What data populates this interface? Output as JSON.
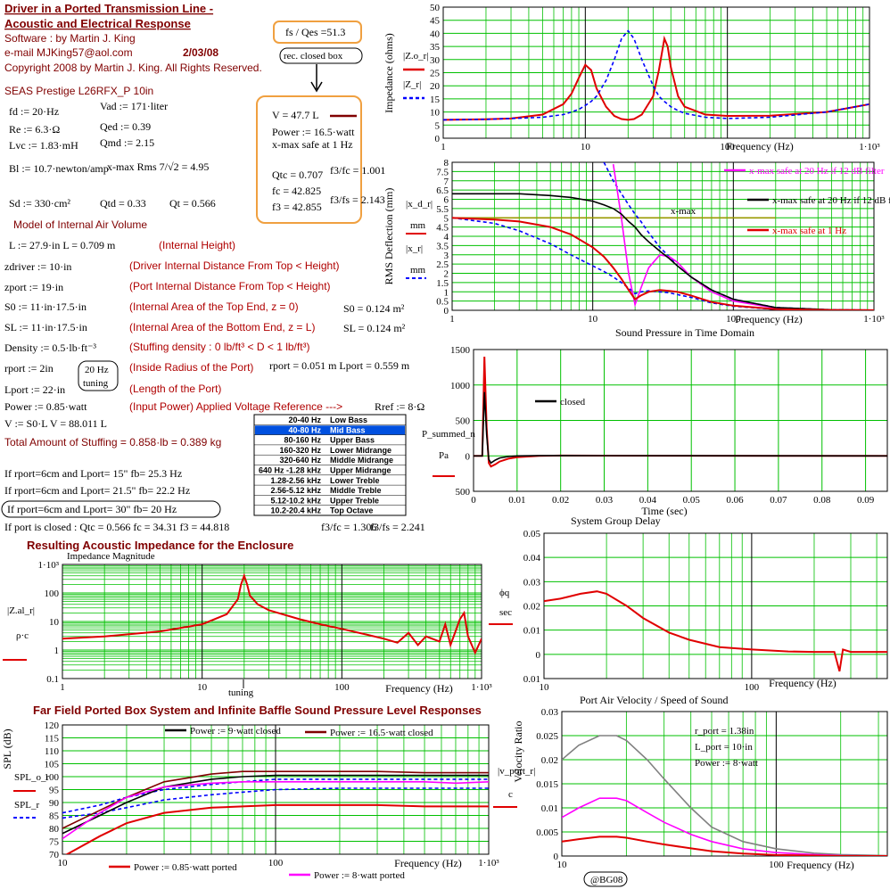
{
  "worksheet": {
    "lines": [
      "Driver in a Ported Transmission Line -",
      "Acoustic and Electrical Response",
      "Software :      by        Martin J. King",
      "e-mail  MJKing57@aol.com",
      "2/03/08",
      "Copyright 2008 by Martin J. King. All Rights Reserved.",
      "SEAS Prestige L26RFX_P 10in",
      "fd := 20·Hz",
      "Vad := 171·liter",
      "Re := 6.3·Ω",
      "Qed := 0.39",
      "Lvc := 1.83·mH",
      "Qmd := 2.15",
      "Bl := 10.7·newton/amp",
      "x-max Rms  7/√2 = 4.95",
      "Sd := 330·cm²",
      "Qtd = 0.33",
      "Qt = 0.566",
      "Model of Internal Air Volume",
      "L := 27.9·in   L = 0.709 m",
      "(Internal Height)",
      "zdriver := 10·in",
      "(Driver Internal Distance From Top < Height)",
      "zport := 19·in",
      "(Port Internal Distance From Top < Height)",
      "S0 := 11·in·17.5·in",
      "(Internal Area of the Top End, z = 0)",
      "S0 = 0.124 m²",
      "SL := 11·in·17.5·in",
      "(Internal Area of the Bottom End, z = L)",
      "SL = 0.124 m²",
      "Density := 0.5·lb·ft⁻³",
      "(Stuffing density : 0 lb/ft³ < D < 1 lb/ft³)",
      "rport := 2in",
      "20 Hz",
      "tuning",
      "(Inside Radius of the Port)",
      "rport = 0.051 m  Lport = 0.559 m",
      "Lport := 22·in",
      "(Length of the Port)",
      "Power := 0.85·watt",
      "(Input Power)   Applied Voltage Reference --->",
      "Rref := 8·Ω",
      "V := S0·L    V = 88.011 L",
      "Total Amount of Stuffing  = 0.858·lb = 0.389 kg",
      "If rport=6cm and Lport= 15\"  fb= 25.3 Hz",
      "If rport=6cm and Lport= 21.5\"  fb= 22.2 Hz",
      "If rport=6cm and Lport= 30\"  fb= 20 Hz",
      "If port is closed :  Qtc = 0.566      fc = 34.31    f3 = 44.818",
      "f3/fc = 1.306",
      "f3/fs = 2.241",
      "fs / Qes =51.3",
      "rec. closed box",
      "V = 47.7 L",
      "Power := 16.5·watt",
      "x-max safe at 1 Hz",
      "Qtc = 0.707",
      "fc = 42.825",
      "f3 = 42.855",
      "f3/fc = 1.001",
      "f3/fs = 2.143",
      "@BG08"
    ]
  },
  "table": {
    "highlight_row": 1,
    "rows": [
      [
        "20-40 Hz",
        "Low Bass"
      ],
      [
        "40-80 Hz",
        "Mid Bass"
      ],
      [
        "80-160 Hz",
        "Upper Bass"
      ],
      [
        "160-320 Hz",
        "Lower Midrange"
      ],
      [
        "320-640 Hz",
        "Middle Midrange"
      ],
      [
        "640 Hz -1.28 kHz",
        "Upper Midrange"
      ],
      [
        "1.28-2.56 kHz",
        "Lower Treble"
      ],
      [
        "2.56-5.12 kHz",
        "Middle Treble"
      ],
      [
        "5.12-10.2 kHz",
        "Upper Treble"
      ],
      [
        "10.2-20.4 kHz",
        "Top Octave"
      ]
    ]
  },
  "chart_data": [
    {
      "type": "line",
      "ylabel": "Impedance (ohms)",
      "xlabel": "Frequency (Hz)",
      "xlog": true,
      "grid": true,
      "x": [
        1,
        2,
        3,
        5,
        7,
        8,
        9,
        10,
        11,
        12,
        14,
        16,
        18,
        20,
        22,
        25,
        30,
        33,
        36,
        38,
        40,
        45,
        50,
        70,
        100,
        200,
        500,
        1000
      ],
      "xlim": [
        1,
        1000
      ],
      "xticks": [
        1,
        10,
        100,
        {
          "value": 1000,
          "label": "1·10³"
        }
      ],
      "ylim": [
        0,
        50
      ],
      "yticks": [
        0,
        5,
        10,
        15,
        20,
        25,
        30,
        35,
        40,
        45,
        50
      ],
      "series": [
        {
          "name": "|Z.o_r|",
          "color": "#e00000",
          "values": [
            7,
            7.2,
            7.5,
            9,
            13,
            17,
            23,
            28,
            26,
            19,
            12,
            8.5,
            7.3,
            7,
            7.3,
            9,
            16,
            26,
            38,
            35,
            27,
            16,
            12,
            9,
            8.5,
            8.6,
            10,
            13
          ]
        },
        {
          "name": "|Z_r|",
          "color": "#0000ff",
          "dash": true,
          "values": [
            7,
            7.2,
            7.5,
            8,
            9,
            10,
            11,
            12.5,
            14,
            16,
            22,
            30,
            38,
            41,
            38,
            30,
            20,
            16,
            14,
            13,
            12,
            10.5,
            9.5,
            8,
            7.5,
            8,
            10,
            13
          ]
        }
      ]
    },
    {
      "type": "line",
      "ylabel": "RMS Deflection (mm)",
      "xlabel": "Frequency (Hz)",
      "xlog": true,
      "grid": true,
      "ylabels": [
        "|x_d_r|",
        "mm",
        "|x_r|",
        "mm"
      ],
      "annotations": [
        "x-max"
      ],
      "x": [
        1,
        2,
        3,
        5,
        7,
        10,
        12,
        14,
        16,
        18,
        20,
        22,
        25,
        30,
        35,
        40,
        50,
        70,
        100,
        200,
        500,
        1000
      ],
      "xlim": [
        1,
        1000
      ],
      "xticks": [
        1,
        10,
        100,
        {
          "value": 1000,
          "label": "1·10³"
        }
      ],
      "ylim": [
        0,
        8
      ],
      "yticks": [
        0,
        0.5,
        1,
        1.5,
        2,
        2.5,
        3,
        3.5,
        4,
        4.5,
        5,
        5.5,
        6,
        6.5,
        7,
        7.5,
        8
      ],
      "series": [
        {
          "color": "#999900",
          "values": [
            5,
            5,
            5,
            5,
            5,
            5,
            5,
            5,
            5,
            5,
            5,
            5,
            5,
            5,
            5,
            5,
            5,
            5,
            5,
            5,
            null,
            null
          ]
        },
        {
          "color": "#0000ff",
          "dash": true,
          "values": [
            5,
            4.7,
            4.3,
            3.6,
            3,
            2.4,
            2.1,
            1.8,
            1.5,
            1.2,
            0.9,
            1,
            1.05,
            1,
            0.95,
            0.85,
            0.7,
            0.4,
            0.22,
            0.05,
            0.01,
            0.005
          ]
        },
        {
          "color": "#0000ff",
          "dash": true,
          "values": [
            null,
            null,
            null,
            null,
            null,
            null,
            8,
            7,
            6.3,
            5.7,
            5.2,
            4.8,
            4.2,
            3.4,
            2.9,
            2.4,
            1.8,
            1.1,
            0.6,
            0.15,
            0.03,
            0.01
          ]
        },
        {
          "name": "x-max safe at 20 Hz if 12 dB filter",
          "color": "#ff00ff",
          "values": [
            null,
            null,
            null,
            null,
            null,
            null,
            null,
            7.9,
            5,
            2,
            0.3,
            1.2,
            2.3,
            3,
            2.9,
            2.6,
            1.8,
            1,
            0.5,
            0.12,
            0.02,
            0.01
          ]
        },
        {
          "name": "x-max safe at 20 Hz if 12 dB filter",
          "color": "#000000",
          "values": [
            6.3,
            6.3,
            6.3,
            6.2,
            6.1,
            5.9,
            5.7,
            5.5,
            5.2,
            4.8,
            4.5,
            4.1,
            3.7,
            3.2,
            2.8,
            2.4,
            1.8,
            1.1,
            0.6,
            0.15,
            0.03,
            0.01
          ]
        },
        {
          "name": "x-max safe at 1 Hz",
          "color": "#e00000",
          "values": [
            5,
            4.9,
            4.8,
            4.5,
            4.1,
            3.4,
            2.9,
            2.3,
            1.7,
            1.1,
            0.6,
            0.8,
            1,
            1.1,
            1.05,
            1,
            0.8,
            0.45,
            0.25,
            0.06,
            0.01,
            0.005
          ]
        }
      ]
    },
    {
      "type": "line",
      "title": "Sound Pressure in Time Domain",
      "xlabel": "Time (sec)",
      "grid": true,
      "ylabels": [
        "P_summed_n",
        "Pa"
      ],
      "x": [
        0,
        0.002,
        0.0025,
        0.003,
        0.0035,
        0.004,
        0.005,
        0.006,
        0.008,
        0.01,
        0.015,
        0.02,
        0.03,
        0.05,
        0.07,
        0.095
      ],
      "xlim": [
        0,
        0.095
      ],
      "xticks": [
        0,
        0.01,
        0.02,
        0.03,
        0.04,
        0.05,
        0.06,
        0.07,
        0.08,
        0.09
      ],
      "ylim": [
        -500,
        1500
      ],
      "yticks": [
        {
          "value": -500,
          "label": "500"
        },
        0,
        500,
        1000,
        1500
      ],
      "series": [
        {
          "color": "#e00000",
          "values": [
            0,
            0,
            1400,
            400,
            -100,
            -150,
            -120,
            -80,
            -40,
            -20,
            0,
            5,
            3,
            2,
            1,
            0
          ]
        },
        {
          "name": "closed",
          "color": "#000000",
          "values": [
            0,
            0,
            900,
            300,
            -50,
            -100,
            -60,
            -30,
            -10,
            0,
            5,
            5,
            3,
            2,
            1,
            0
          ]
        }
      ]
    },
    {
      "type": "line",
      "title": "System Group Delay",
      "xlabel": "Frequency (Hz)",
      "xlog": true,
      "grid": true,
      "ylabels": [
        "ϕq",
        "sec"
      ],
      "x": [
        10,
        12,
        15,
        18,
        20,
        25,
        30,
        40,
        50,
        70,
        100,
        150,
        200,
        250,
        265,
        275,
        300,
        450
      ],
      "xlim": [
        10,
        450
      ],
      "xticks": [
        10,
        100
      ],
      "ylim": [
        -0.01,
        0.05
      ],
      "yticks": [
        {
          "value": -0.01,
          "label": "0.01"
        },
        0,
        0.01,
        0.02,
        0.03,
        0.04,
        0.05
      ],
      "series": [
        {
          "color": "#e00000",
          "values": [
            0.022,
            0.023,
            0.025,
            0.026,
            0.025,
            0.02,
            0.015,
            0.009,
            0.006,
            0.003,
            0.002,
            0.0012,
            0.001,
            0.001,
            -0.007,
            0.002,
            0.001,
            0.001
          ]
        }
      ]
    },
    {
      "type": "line",
      "title": "Resulting Acoustic Impedance for the Enclosure",
      "subtitle": "Impedance Magnitude",
      "xlabel": "Frequency (Hz)",
      "xlog": true,
      "ylog": true,
      "grid": true,
      "ylabels": [
        "|Z.al_r|",
        "ρ·c"
      ],
      "annotations": [
        "tuning"
      ],
      "x": [
        1,
        2,
        5,
        10,
        15,
        18,
        19,
        20,
        21,
        22,
        25,
        30,
        50,
        70,
        100,
        150,
        200,
        250,
        300,
        350,
        400,
        500,
        550,
        600,
        700,
        750,
        800,
        900,
        1000
      ],
      "xlim": [
        1,
        1000
      ],
      "xticks": [
        1,
        10,
        100,
        {
          "value": 1000,
          "label": "1·10³"
        }
      ],
      "ylim": [
        0.1,
        1000
      ],
      "yticks": [
        0.1,
        1,
        10,
        100,
        {
          "value": 1000,
          "label": "1·10³"
        }
      ],
      "series": [
        {
          "color": "#e00000",
          "values": [
            2.5,
            3,
            4.5,
            8,
            18,
            60,
            200,
            400,
            200,
            80,
            40,
            25,
            12,
            8,
            5.5,
            3.5,
            2.5,
            1.8,
            4,
            1.5,
            3,
            2,
            8,
            1.5,
            12,
            20,
            3,
            0.8,
            2.5
          ]
        }
      ]
    },
    {
      "type": "line",
      "title": "Far Field Ported Box System and Infinite Baffle Sound Pressure Level Responses",
      "ylabel": "SPL (dB)",
      "xlabel": "Frequency (Hz)",
      "xlog": true,
      "grid": true,
      "ylabels": [
        "SPL_o_r",
        "SPL_r"
      ],
      "x": [
        10,
        15,
        20,
        30,
        50,
        70,
        100,
        200,
        300,
        500,
        700,
        1000
      ],
      "xlim": [
        10,
        1000
      ],
      "xticks": [
        10,
        100,
        {
          "value": 1000,
          "label": "1·10³"
        }
      ],
      "ylim": [
        70,
        120
      ],
      "yticks": [
        70,
        75,
        80,
        85,
        90,
        95,
        100,
        105,
        110,
        115,
        120
      ],
      "series": [
        {
          "color": "#0000ff",
          "dash": true,
          "values": [
            84,
            86,
            88,
            91,
            93,
            94,
            95,
            95.5,
            95.5,
            95.5,
            95.5,
            95.5
          ]
        },
        {
          "color": "#0000ff",
          "dash": true,
          "values": [
            86,
            89,
            92,
            95,
            97,
            98,
            99,
            99,
            99,
            99,
            99,
            99
          ]
        },
        {
          "name": "Power := 9·watt closed",
          "color": "#000000",
          "values": [
            78,
            85,
            90,
            96,
            99,
            100,
            100.5,
            100.5,
            100.5,
            100.5,
            100.5,
            100.5
          ]
        },
        {
          "name": "Power := 16.5·watt closed",
          "color": "#800000",
          "values": [
            80,
            87,
            92,
            98,
            101,
            102,
            102,
            102,
            102,
            101.5,
            101.5,
            101.5
          ]
        },
        {
          "name": "Power := 0.85·watt ported",
          "color": "#e00000",
          "values": [
            69,
            77,
            82,
            86,
            88,
            88.5,
            89,
            89,
            89,
            88.5,
            88.5,
            88.5
          ]
        },
        {
          "name": "Power := 8·watt ported",
          "color": "#ff00ff",
          "values": [
            76,
            86,
            92,
            96,
            97.5,
            98,
            98,
            98,
            98,
            98,
            97.5,
            98
          ]
        }
      ]
    },
    {
      "type": "line",
      "title": "Port Air Velocity / Speed of Sound",
      "ylabel": "Velocity Ratio",
      "xlabel": "Frequency (Hz)",
      "xlog": true,
      "grid": true,
      "ylabels": [
        "|v_port_r|",
        "c"
      ],
      "annotations": [
        "r_port = 1.38in",
        "L_port = 10·in",
        "Power := 8·watt"
      ],
      "x": [
        10,
        12,
        15,
        18,
        20,
        25,
        30,
        40,
        50,
        70,
        100,
        150,
        200,
        330
      ],
      "xlim": [
        10,
        330
      ],
      "xticks": [
        10,
        100
      ],
      "ylim": [
        0,
        0.03
      ],
      "yticks": [
        0,
        0.005,
        0.01,
        0.015,
        0.02,
        0.025,
        0.03
      ],
      "series": [
        {
          "color": "#808080",
          "values": [
            0.02,
            0.023,
            0.025,
            0.025,
            0.024,
            0.02,
            0.016,
            0.01,
            0.006,
            0.003,
            0.0015,
            0.0006,
            0.0003,
            0.0001
          ]
        },
        {
          "color": "#ff00ff",
          "values": [
            0.008,
            0.01,
            0.012,
            0.012,
            0.0115,
            0.009,
            0.007,
            0.0045,
            0.003,
            0.0015,
            0.0007,
            0.0003,
            0.0001,
            0
          ]
        },
        {
          "color": "#e00000",
          "values": [
            0.003,
            0.0035,
            0.004,
            0.004,
            0.0038,
            0.003,
            0.0024,
            0.0016,
            0.001,
            0.0005,
            0.0002,
            0.0001,
            0,
            0
          ]
        }
      ]
    }
  ]
}
